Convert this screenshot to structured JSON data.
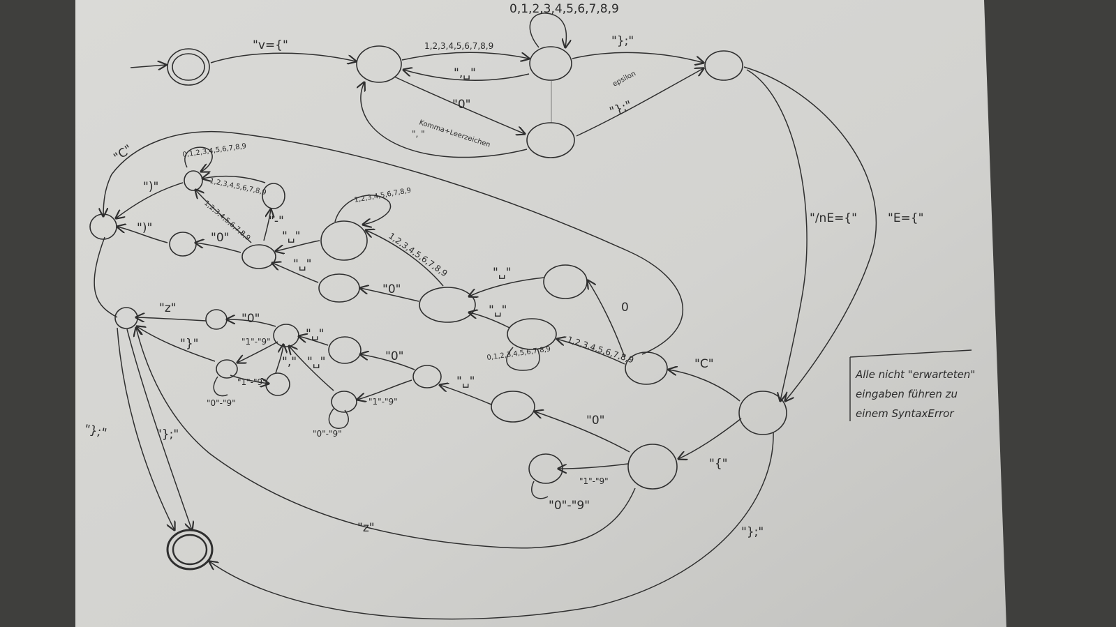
{
  "colors": {
    "background": "#3f3f3d",
    "paper": "#d6d6d3",
    "ink": "#2f2f2f"
  },
  "labels": {
    "l_v": "\"v={\"",
    "l_19_top": "1,2,3,4,5,6,7,8,9",
    "l_space_top": "\",␣\"",
    "l_09_loop": "0,1,2,3,4,5,6,7,8,9",
    "l_close_top": "\"};\"",
    "l_0_top": "\"0\"",
    "l_komma": "Komma+Leerzeichen",
    "l_komma_sym": "\", \"",
    "l_epsilon": "epsilon",
    "l_close_mid": "\"};\"",
    "l_nE": "\"/nE={\"",
    "l_E": "\"E={\"",
    "l_C_top": "\"C\"",
    "l_loop_a": "0,1,2,3,4,5,6,7,8,9",
    "l_paren_a": "\")\"",
    "l_19_a": "1,2,3,4,5,6,7,8,9",
    "l_19_b": "1,2,3,4,5,6,7,8,9",
    "l_paren_b": "\")\"",
    "l_0_a": "\"0\"",
    "l_dash": "\"-\"",
    "l_sp_a": "\"␣\"",
    "l_sp_b": "\"␣\"",
    "l_loop_b": "1,2,3,4,5,6,7,8,9",
    "l_19_c": "1,2,3,4,5,6,7,8,9",
    "l_0_b": "\"0\"",
    "l_sp_c": "\"␣\"",
    "l_sp_d": "\"␣\"",
    "l_0_c": "0",
    "l_19_d": "1,2,3,4,5,6,7,8,9",
    "l_loop_c": "0,1,2,3,4,5,6,7,8,9",
    "l_C_mid": "\"C\"",
    "l_z": "\"z\"",
    "l_0_d": "\"0\"",
    "l_closebrace": "\"}\"",
    "l_1to9_a": "\"1\"-\"9\"",
    "l_sp_e": "\"␣\"",
    "l_comma_b": "\",\"",
    "l_sp_f": "\"␣\"",
    "l_1to9_b": "\"1\"-\"9\"",
    "l_0to9_a": "\"0\"-\"9\"",
    "l_0_e": "\"0\"",
    "l_sp_g": "\"␣\"",
    "l_1to9_c": "\"1\"-\"9\"",
    "l_0to9_b": "\"0\"-\"9\"",
    "l_0_f": "\"0\"",
    "l_brace_open": "\"{\"",
    "l_1to9_d": "\"1\"-\"9\"",
    "l_0to9_c": "\"0\"-\"9\"",
    "l_end_a": "\"};\"",
    "l_end_b": "\"};\"",
    "l_z_bottom": "\"z\"",
    "l_end_c": "\"};\""
  },
  "note": {
    "line1": "Alle nicht \"erwarteten\"",
    "line2": "eingaben führen zu",
    "line3": "einem SyntaxError"
  }
}
